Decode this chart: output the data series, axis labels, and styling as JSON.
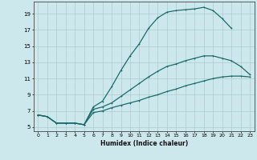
{
  "xlabel": "Humidex (Indice chaleur)",
  "xlim": [
    -0.5,
    23.5
  ],
  "ylim": [
    4.5,
    20.5
  ],
  "xticks": [
    0,
    1,
    2,
    3,
    4,
    5,
    6,
    7,
    8,
    9,
    10,
    11,
    12,
    13,
    14,
    15,
    16,
    17,
    18,
    19,
    20,
    21,
    22,
    23
  ],
  "yticks": [
    5,
    7,
    9,
    11,
    13,
    15,
    17,
    19
  ],
  "bg_color": "#cde8ec",
  "grid_color": "#aacccc",
  "line_color": "#1a6b6b",
  "line1_x": [
    0,
    1,
    2,
    3,
    4,
    5,
    6,
    7,
    8,
    9,
    10,
    11,
    12,
    13,
    14,
    15,
    16,
    17,
    18,
    19,
    20,
    21
  ],
  "line1_y": [
    6.5,
    6.3,
    5.5,
    5.5,
    5.5,
    5.3,
    7.5,
    8.2,
    10.0,
    12.0,
    13.8,
    15.3,
    17.2,
    18.5,
    19.2,
    19.4,
    19.5,
    19.6,
    19.8,
    19.4,
    18.4,
    17.2
  ],
  "line2_x": [
    0,
    1,
    2,
    3,
    4,
    5,
    6,
    7,
    8,
    9,
    10,
    11,
    12,
    13,
    14,
    15,
    16,
    17,
    18,
    19,
    20,
    21,
    22,
    23
  ],
  "line2_y": [
    6.5,
    6.3,
    5.5,
    5.5,
    5.5,
    5.3,
    7.2,
    7.5,
    8.0,
    8.8,
    9.6,
    10.4,
    11.2,
    11.9,
    12.5,
    12.8,
    13.2,
    13.5,
    13.8,
    13.8,
    13.5,
    13.2,
    12.5,
    11.5
  ],
  "line3_x": [
    0,
    1,
    2,
    3,
    4,
    5,
    6,
    7,
    8,
    9,
    10,
    11,
    12,
    13,
    14,
    15,
    16,
    17,
    18,
    19,
    20,
    21,
    22,
    23
  ],
  "line3_y": [
    6.5,
    6.3,
    5.5,
    5.5,
    5.5,
    5.3,
    6.8,
    7.0,
    7.4,
    7.7,
    8.0,
    8.3,
    8.7,
    9.0,
    9.4,
    9.7,
    10.1,
    10.4,
    10.7,
    11.0,
    11.2,
    11.3,
    11.3,
    11.2
  ]
}
